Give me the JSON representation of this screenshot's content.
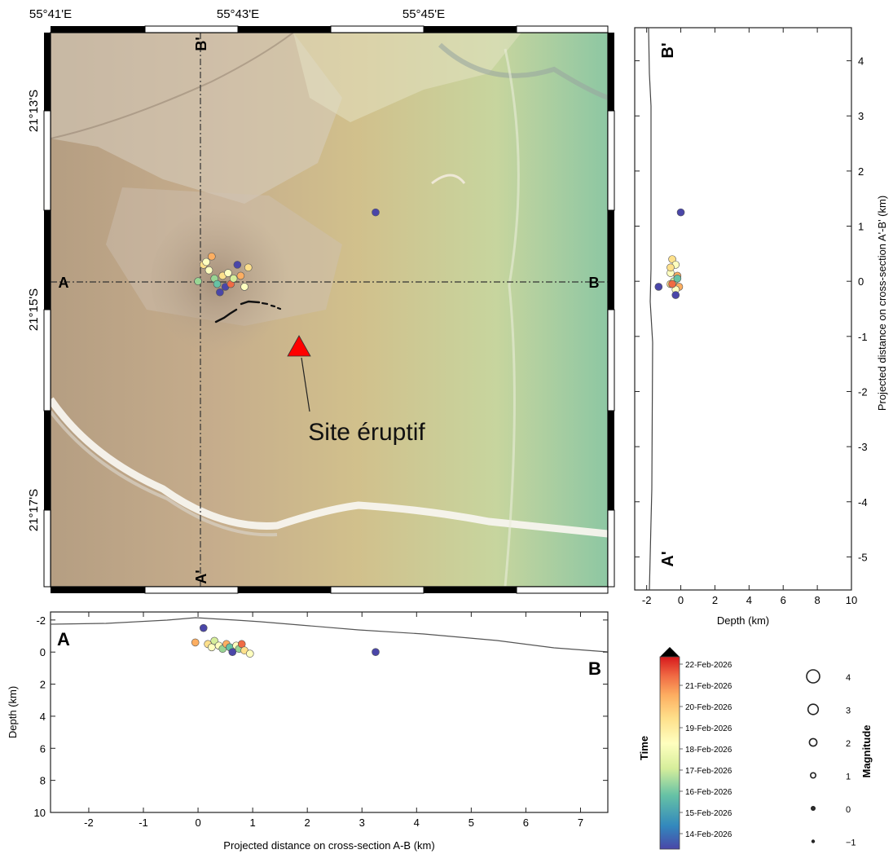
{
  "map": {
    "lon_ticks": [
      "55°41'E",
      "55°43'E",
      "55°45'E"
    ],
    "lat_ticks": [
      "21°13'S",
      "21°15'S",
      "21°17'S"
    ],
    "profile_labels": {
      "A": "A",
      "B": "B",
      "B_prime": "B'",
      "A_prime": "A'"
    },
    "eruption_label": "Site éruptif",
    "eruption_marker_color": "#ff0000"
  },
  "section_ab": {
    "xlabel": "Projected distance on cross-section A-B (km)",
    "ylabel": "Depth (km)",
    "xticks": [
      "-2",
      "-1",
      "0",
      "1",
      "2",
      "3",
      "4",
      "5",
      "6",
      "7"
    ],
    "yticks": [
      "-2",
      "0",
      "2",
      "4",
      "6",
      "8",
      "10"
    ],
    "end_labels": {
      "left": "A",
      "right": "B"
    }
  },
  "section_ab_prime": {
    "xlabel": "Depth (km)",
    "ylabel": "Projected distance on cross-section A'-B' (km)",
    "xticks": [
      "-2",
      "0",
      "2",
      "4",
      "6",
      "8",
      "10"
    ],
    "yticks": [
      "4",
      "3",
      "2",
      "1",
      "0",
      "-1",
      "-2",
      "-3",
      "-4",
      "-5"
    ],
    "end_labels": {
      "top": "B'",
      "bottom": "A'"
    }
  },
  "colorbar": {
    "title": "Time",
    "labels": [
      "22-Feb-2026",
      "21-Feb-2026",
      "20-Feb-2026",
      "19-Feb-2026",
      "18-Feb-2026",
      "17-Feb-2026",
      "16-Feb-2026",
      "15-Feb-2026",
      "14-Feb-2026"
    ],
    "colors": [
      "#d7191c",
      "#f06b44",
      "#fdae61",
      "#fee08b",
      "#ffffbf",
      "#d6ee9b",
      "#99d594",
      "#3288bd",
      "#4a46a8"
    ]
  },
  "magnitude_legend": {
    "title": "Magnitude",
    "values": [
      "4",
      "3",
      "2",
      "1",
      "0",
      "−1"
    ]
  },
  "chart_data": [
    {
      "type": "scatter",
      "title": "",
      "xlabel": "Projected distance on cross-section A-B (km)",
      "ylabel": "Depth (km)",
      "xlim": [
        -2.7,
        7.5
      ],
      "ylim": [
        -2.5,
        10
      ],
      "series": [
        {
          "values": [
            {
              "x": -0.05,
              "y": -0.6,
              "c": 0.75
            },
            {
              "x": 0.1,
              "y": -1.5,
              "c": 0.05
            },
            {
              "x": 0.18,
              "y": -0.5,
              "c": 0.65
            },
            {
              "x": 0.25,
              "y": -0.3,
              "c": 0.55
            },
            {
              "x": 0.3,
              "y": -0.7,
              "c": 0.45
            },
            {
              "x": 0.38,
              "y": -0.4,
              "c": 0.6
            },
            {
              "x": 0.45,
              "y": -0.2,
              "c": 0.35
            },
            {
              "x": 0.52,
              "y": -0.5,
              "c": 0.75
            },
            {
              "x": 0.58,
              "y": -0.3,
              "c": 0.2
            },
            {
              "x": 0.63,
              "y": 0.0,
              "c": 0.05
            },
            {
              "x": 0.7,
              "y": -0.4,
              "c": 0.55
            },
            {
              "x": 0.75,
              "y": -0.2,
              "c": 0.3
            },
            {
              "x": 0.8,
              "y": -0.5,
              "c": 0.85
            },
            {
              "x": 0.85,
              "y": -0.1,
              "c": 0.65
            },
            {
              "x": 0.95,
              "y": 0.1,
              "c": 0.6
            },
            {
              "x": 3.25,
              "y": 0.0,
              "c": 0.05
            }
          ]
        }
      ]
    },
    {
      "type": "scatter",
      "title": "",
      "xlabel": "Depth (km)",
      "ylabel": "Projected distance on cross-section A'-B' (km)",
      "xlim": [
        -2.7,
        10
      ],
      "ylim": [
        -5.6,
        4.6
      ],
      "series": [
        {
          "values": [
            {
              "x": 0.0,
              "y": 1.25,
              "c": 0.05
            },
            {
              "x": -1.3,
              "y": -0.1,
              "c": 0.05
            },
            {
              "x": -0.5,
              "y": 0.4,
              "c": 0.7
            },
            {
              "x": -0.3,
              "y": 0.3,
              "c": 0.6
            },
            {
              "x": -0.6,
              "y": 0.15,
              "c": 0.5
            },
            {
              "x": -0.2,
              "y": 0.1,
              "c": 0.75
            },
            {
              "x": -0.4,
              "y": 0.0,
              "c": 0.4
            },
            {
              "x": -0.6,
              "y": -0.05,
              "c": 0.65
            },
            {
              "x": -0.1,
              "y": -0.1,
              "c": 0.8
            },
            {
              "x": -0.3,
              "y": -0.15,
              "c": 0.55
            },
            {
              "x": -0.5,
              "y": -0.05,
              "c": 0.85
            },
            {
              "x": -0.2,
              "y": 0.05,
              "c": 0.25
            },
            {
              "x": -0.6,
              "y": 0.25,
              "c": 0.65
            },
            {
              "x": -0.3,
              "y": -0.25,
              "c": 0.05
            }
          ]
        }
      ]
    }
  ]
}
